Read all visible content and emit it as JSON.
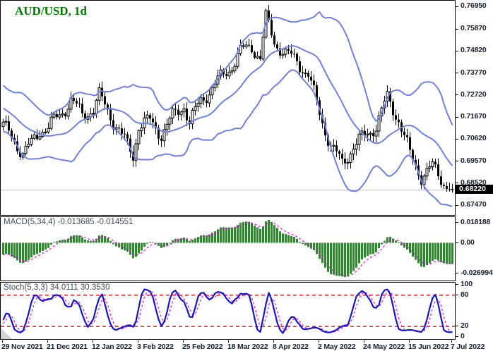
{
  "header": {
    "title": "AUD/USD, 1d",
    "title_color": "#007a00"
  },
  "main_chart": {
    "y_ticks": [
      "0.76950",
      "0.75870",
      "0.74820",
      "0.73770",
      "0.72720",
      "0.71670",
      "0.70620",
      "0.69570",
      "0.68520",
      "0.67470"
    ],
    "current_price": "0.68220",
    "scale": {
      "top": 0.77254,
      "bottom": 0.67033
    }
  },
  "macd_panel": {
    "label": "MACD(5,34,4) -0.013685 -0.014551",
    "y_ticks": [
      "0.018188",
      "0.00",
      "-0.026994"
    ]
  },
  "stoch_panel": {
    "label": "Stoch(5,3,3) 34.0111 30.3530",
    "y_ticks": [
      "100",
      "80",
      "20",
      "0"
    ],
    "levels": [
      80,
      20
    ]
  },
  "x_axis": {
    "dates": [
      {
        "label": "29 Nov 2021",
        "index": 0
      },
      {
        "label": "21 Dec 2021",
        "index": 16
      },
      {
        "label": "12 Jan 2022",
        "index": 32
      },
      {
        "label": "3 Feb 2022",
        "index": 48
      },
      {
        "label": "25 Feb 2022",
        "index": 64
      },
      {
        "label": "18 Mar 2022",
        "index": 80
      },
      {
        "label": "8 Apr 2022",
        "index": 96
      },
      {
        "label": "2 May 2022",
        "index": 112
      },
      {
        "label": "24 May 2022",
        "index": 128
      },
      {
        "label": "15 Jun 2022",
        "index": 144
      },
      {
        "label": "7 Jul 2022",
        "index": 159
      }
    ]
  },
  "colors": {
    "bollinger": "#6e80e8",
    "bull_body": "#ffffff",
    "bear_body": "#000000",
    "wick": "#000000",
    "price_line": "#c0c0c0",
    "badge_bg": "#000000",
    "badge_text": "#ffffff",
    "macd_histogram": "#0aa00a",
    "signal_line": "#f000f0",
    "stoch_k": "#1414d2",
    "stoch_d": "#f000f0",
    "level_line": "#e81414",
    "axis_text": "#17222e",
    "panel_label": "#3d4e61",
    "title_green": "#007a00"
  },
  "chart_data": [
    {
      "type": "candlestick",
      "title": "AUD/USD, 1d",
      "timeframe": "1d",
      "overlay": "Bollinger Bands (upper, middle, lower)",
      "x_tick_labels": [
        "29 Nov 2021",
        "21 Dec 2021",
        "12 Jan 2022",
        "3 Feb 2022",
        "25 Feb 2022",
        "18 Mar 2022",
        "8 Apr 2022",
        "2 May 2022",
        "24 May 2022",
        "15 Jun 2022",
        "7 Jul 2022"
      ],
      "y_tick_values": [
        0.7695,
        0.7587,
        0.7482,
        0.7377,
        0.7272,
        0.7167,
        0.7062,
        0.6957,
        0.6852,
        0.6747
      ],
      "ylim": [
        0.67033,
        0.77254
      ],
      "last_close": 0.6822,
      "closes": [
        0.7125,
        0.7108,
        0.7092,
        0.7075,
        0.706,
        0.7038,
        0.7016,
        0.6995,
        0.701,
        0.7025,
        0.704,
        0.7063,
        0.7086,
        0.711,
        0.7113,
        0.7117,
        0.712,
        0.7135,
        0.715,
        0.7165,
        0.718,
        0.7198,
        0.7215,
        0.7233,
        0.725,
        0.7233,
        0.7215,
        0.7198,
        0.718,
        0.7188,
        0.7195,
        0.7203,
        0.721,
        0.724,
        0.727,
        0.7248,
        0.7225,
        0.7203,
        0.718,
        0.7155,
        0.713,
        0.7105,
        0.708,
        0.7058,
        0.7035,
        0.7013,
        0.699,
        0.706,
        0.713,
        0.7135,
        0.714,
        0.7145,
        0.715,
        0.7135,
        0.712,
        0.7105,
        0.709,
        0.711,
        0.713,
        0.715,
        0.717,
        0.7185,
        0.72,
        0.7215,
        0.723,
        0.7185,
        0.714,
        0.7168,
        0.7195,
        0.7223,
        0.725,
        0.7265,
        0.728,
        0.7295,
        0.731,
        0.7325,
        0.734,
        0.7355,
        0.737,
        0.7385,
        0.74,
        0.742,
        0.744,
        0.746,
        0.748,
        0.7488,
        0.7495,
        0.7503,
        0.751,
        0.749,
        0.747,
        0.745,
        0.7545,
        0.764,
        0.7603,
        0.7567,
        0.753,
        0.7515,
        0.75,
        0.7485,
        0.747,
        0.7463,
        0.7455,
        0.7448,
        0.744,
        0.7423,
        0.7405,
        0.7388,
        0.737,
        0.7325,
        0.728,
        0.7235,
        0.719,
        0.715,
        0.711,
        0.707,
        0.703,
        0.701,
        0.699,
        0.697,
        0.695,
        0.697,
        0.699,
        0.701,
        0.703,
        0.7043,
        0.7055,
        0.7068,
        0.708,
        0.7093,
        0.7105,
        0.7118,
        0.713,
        0.7163,
        0.7195,
        0.7228,
        0.726,
        0.7235,
        0.721,
        0.7185,
        0.716,
        0.7118,
        0.7075,
        0.7033,
        0.699,
        0.6965,
        0.694,
        0.6915,
        0.689,
        0.69,
        0.691,
        0.692,
        0.693,
        0.6913,
        0.6895,
        0.6878,
        0.686,
        0.6848,
        0.6835,
        0.6822
      ]
    },
    {
      "type": "bar",
      "title": "MACD(5,34,4)",
      "params": {
        "fast": 5,
        "slow": 34,
        "signal": 4
      },
      "current_values": [
        -0.013685,
        -0.014551
      ],
      "y_tick_values": [
        0.018188,
        0.0,
        -0.026994
      ],
      "ylim": [
        -0.03,
        0.0205
      ],
      "derived_from_series": "closes"
    },
    {
      "type": "line",
      "title": "Stoch(5,3,3)",
      "params": {
        "k": 5,
        "slowing": 3,
        "d": 3
      },
      "current_values": [
        34.0111,
        30.353
      ],
      "y_tick_values": [
        100,
        80,
        20,
        0
      ],
      "levels": [
        80,
        20
      ],
      "ylim": [
        0,
        100
      ],
      "derived_from_series": "closes"
    }
  ]
}
